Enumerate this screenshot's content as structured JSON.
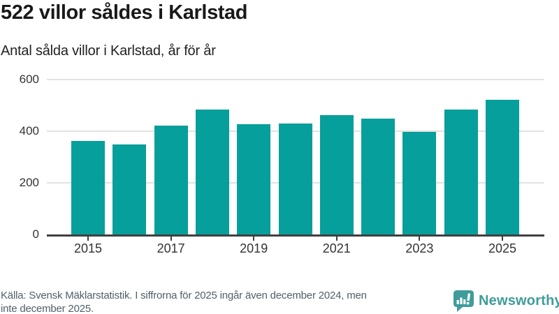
{
  "header": {
    "title": "522 villor såldes i Karlstad",
    "subtitle": "Antal sålda villor i Karlstad, år för år"
  },
  "chart_data": {
    "type": "bar",
    "title": "522 villor såldes i Karlstad",
    "subtitle": "Antal sålda villor i Karlstad, år för år",
    "categories": [
      "2015",
      "2016",
      "2017",
      "2018",
      "2019",
      "2020",
      "2021",
      "2022",
      "2023",
      "2024",
      "2025"
    ],
    "values": [
      363,
      348,
      422,
      484,
      427,
      429,
      461,
      448,
      397,
      485,
      522
    ],
    "x_ticks": [
      "2015",
      "2017",
      "2019",
      "2021",
      "2023",
      "2025"
    ],
    "y_ticks": [
      0,
      200,
      400,
      600
    ],
    "xlabel": "",
    "ylabel": "",
    "ylim": [
      0,
      600
    ],
    "grid": "horizontal",
    "legend": "none",
    "bar_color": "#079f9b"
  },
  "footer": {
    "lines": [
      "Källa: Svensk Mäklarstatistik. I siffrorna för 2025 ingår även december 2024, men",
      "inte december 2025."
    ]
  },
  "logo": {
    "text": "Newsworthy",
    "color": "#3f9c9a"
  },
  "colors": {
    "bar": "#079f9b",
    "grid": "#e2e2e2",
    "axis": "#404040",
    "title_text": "#191919",
    "label_text": "#333333",
    "muted_text": "#50606a",
    "logo_teal": "#3f9c9a"
  }
}
